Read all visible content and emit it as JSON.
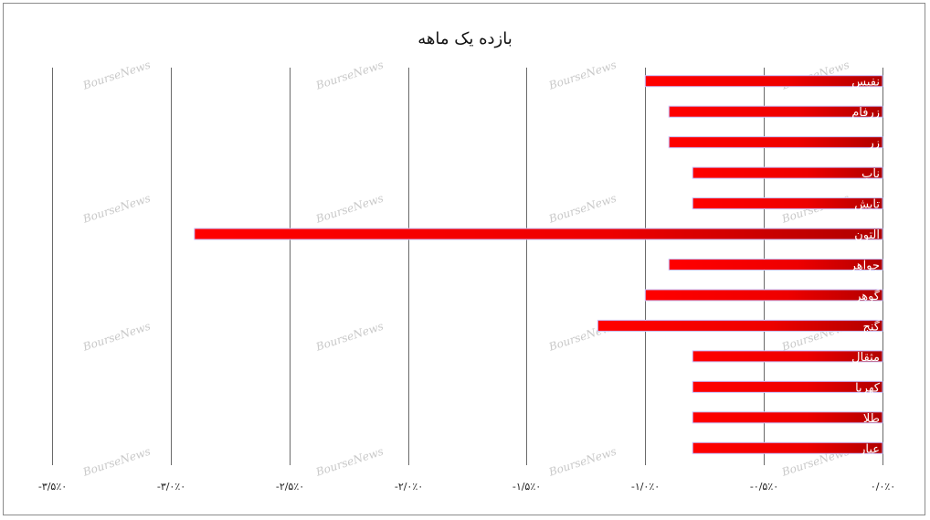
{
  "chart_data": {
    "type": "bar",
    "orientation": "horizontal",
    "title": "بازده یک ماهه",
    "xlabel": "",
    "ylabel": "",
    "categories": [
      "نفیس",
      "زرفام",
      "زر",
      "ناب",
      "تابش",
      "التون",
      "جواهر",
      "گوهر",
      "گنج",
      "مثقال",
      "کهربا",
      "طلا",
      "عیار"
    ],
    "values": [
      -1.0,
      -0.9,
      -0.9,
      -0.8,
      -0.8,
      -2.9,
      -0.9,
      -1.0,
      -1.2,
      -0.8,
      -0.8,
      -0.8,
      -0.8
    ],
    "xlim": [
      -3.5,
      0
    ],
    "x_ticks": [
      -3.5,
      -3.0,
      -2.5,
      -2.0,
      -1.5,
      -1.0,
      -0.5,
      0
    ],
    "x_tick_labels": [
      "-۳/۵٪۰",
      "-۳/۰٪۰",
      "-۲/۵٪۰",
      "-۲/۰٪۰",
      "-۱/۵٪۰",
      "-۱/۰٪۰",
      "-۰/۵٪۰",
      "۰/۰٪۰"
    ],
    "grid": true,
    "legend": "none",
    "bar_color": "#ff0000",
    "bar_color_dark": "#b00000",
    "watermark": "BourseNews"
  }
}
